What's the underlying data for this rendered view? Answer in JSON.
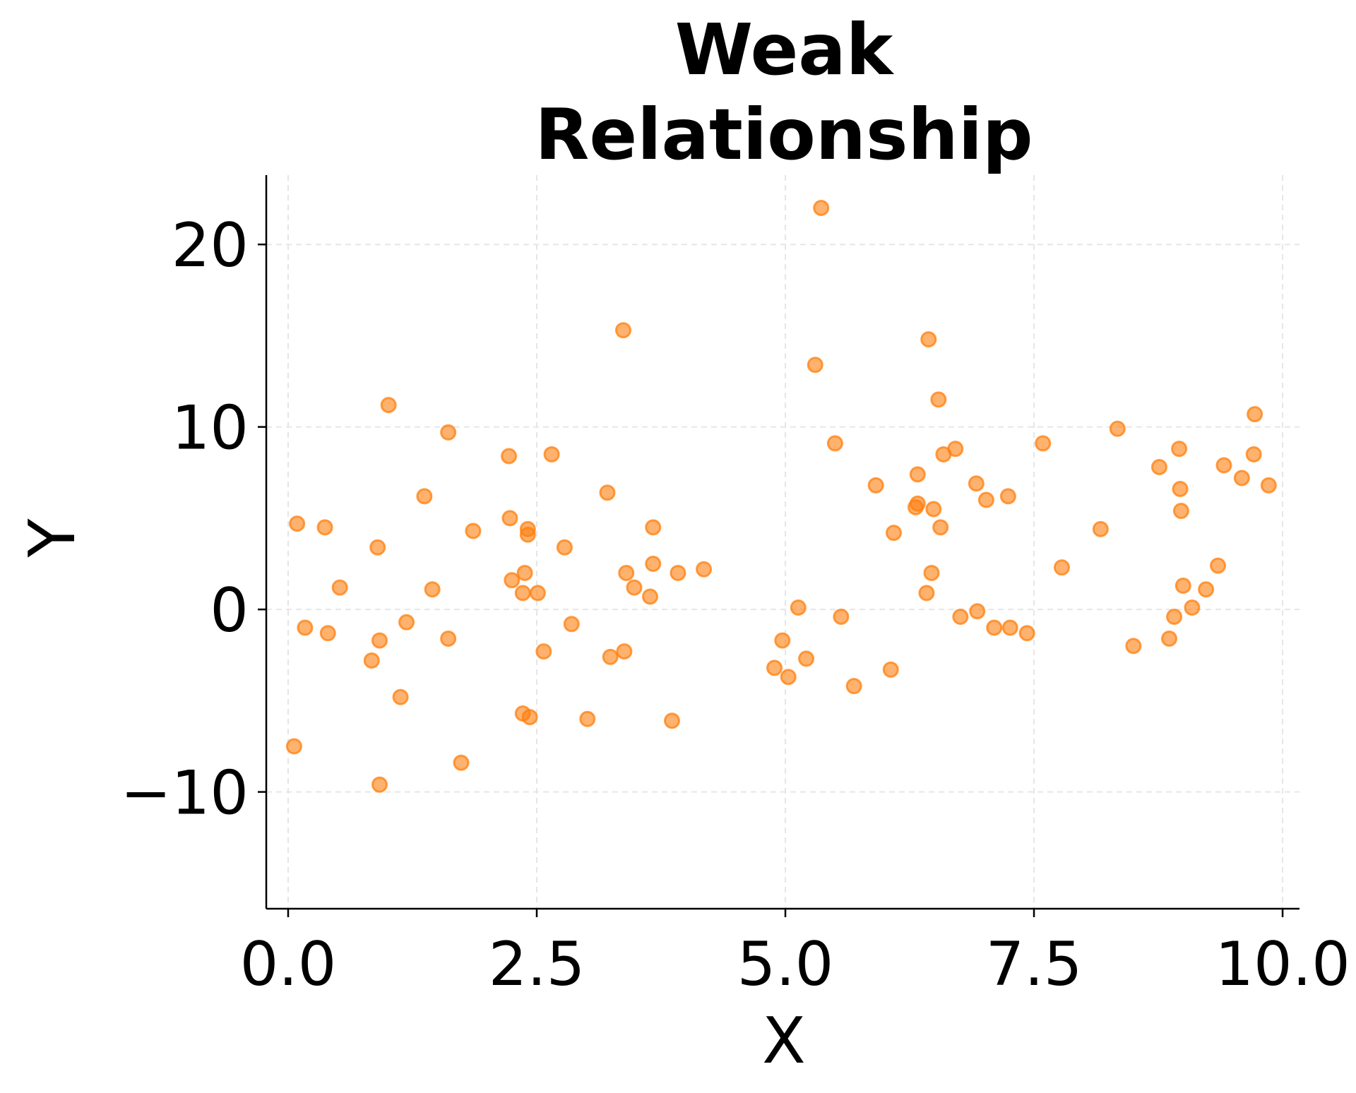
{
  "chart_data": {
    "type": "scatter",
    "title_lines": [
      "Weak",
      "Relationship"
    ],
    "xlabel": "X",
    "ylabel": "Y",
    "xlim": [
      -0.22,
      10.17
    ],
    "ylim": [
      -16.4,
      23.8
    ],
    "x_ticks": [
      0.0,
      2.5,
      5.0,
      7.5,
      10.0
    ],
    "x_tick_labels": [
      "0.0",
      "2.5",
      "5.0",
      "7.5",
      "10.0"
    ],
    "y_ticks": [
      -10,
      0,
      10,
      20
    ],
    "y_tick_labels": [
      "−10",
      "0",
      "10",
      "20"
    ],
    "grid": true,
    "colors": {
      "points": "#ff7f0e",
      "grid": "#e6e6e6",
      "axis": "#000000"
    },
    "series": [
      {
        "points": [
          [
            0.06,
            -7.5
          ],
          [
            0.09,
            4.7
          ],
          [
            0.17,
            -1.0
          ],
          [
            0.37,
            4.5
          ],
          [
            0.4,
            -1.3
          ],
          [
            0.52,
            1.2
          ],
          [
            0.9,
            3.4
          ],
          [
            0.92,
            -1.7
          ],
          [
            0.84,
            -2.8
          ],
          [
            0.92,
            -9.6
          ],
          [
            1.01,
            11.2
          ],
          [
            1.13,
            -4.8
          ],
          [
            1.19,
            -0.7
          ],
          [
            1.37,
            6.2
          ],
          [
            1.45,
            1.1
          ],
          [
            1.61,
            9.7
          ],
          [
            1.61,
            -1.6
          ],
          [
            1.74,
            -8.4
          ],
          [
            1.86,
            4.3
          ],
          [
            2.22,
            8.4
          ],
          [
            2.23,
            5.0
          ],
          [
            2.25,
            1.6
          ],
          [
            2.36,
            0.9
          ],
          [
            2.38,
            2.0
          ],
          [
            2.36,
            -5.7
          ],
          [
            2.41,
            4.4
          ],
          [
            2.41,
            4.1
          ],
          [
            2.43,
            -5.9
          ],
          [
            2.51,
            0.9
          ],
          [
            2.57,
            -2.3
          ],
          [
            2.65,
            8.5
          ],
          [
            2.78,
            3.4
          ],
          [
            2.85,
            -0.8
          ],
          [
            3.01,
            -6.0
          ],
          [
            3.21,
            6.4
          ],
          [
            3.24,
            -2.6
          ],
          [
            3.37,
            15.3
          ],
          [
            3.38,
            -2.3
          ],
          [
            3.4,
            2.0
          ],
          [
            3.48,
            1.2
          ],
          [
            3.64,
            0.7
          ],
          [
            3.67,
            4.5
          ],
          [
            3.67,
            2.5
          ],
          [
            3.86,
            -6.1
          ],
          [
            3.92,
            2.0
          ],
          [
            4.18,
            2.2
          ],
          [
            4.89,
            -3.2
          ],
          [
            4.97,
            -1.7
          ],
          [
            5.03,
            -3.7
          ],
          [
            5.13,
            0.1
          ],
          [
            5.21,
            -2.7
          ],
          [
            5.3,
            13.4
          ],
          [
            5.36,
            22.0
          ],
          [
            5.5,
            9.1
          ],
          [
            5.56,
            -0.4
          ],
          [
            5.69,
            -4.2
          ],
          [
            5.91,
            6.8
          ],
          [
            6.06,
            -3.3
          ],
          [
            6.09,
            4.2
          ],
          [
            6.31,
            5.6
          ],
          [
            6.33,
            5.8
          ],
          [
            6.33,
            7.4
          ],
          [
            6.42,
            0.9
          ],
          [
            6.44,
            14.8
          ],
          [
            6.47,
            2.0
          ],
          [
            6.49,
            5.5
          ],
          [
            6.54,
            11.5
          ],
          [
            6.56,
            4.5
          ],
          [
            6.59,
            8.5
          ],
          [
            6.71,
            8.8
          ],
          [
            6.76,
            -0.4
          ],
          [
            6.92,
            6.9
          ],
          [
            6.93,
            -0.1
          ],
          [
            7.02,
            6.0
          ],
          [
            7.1,
            -1.0
          ],
          [
            7.24,
            6.2
          ],
          [
            7.26,
            -1.0
          ],
          [
            7.43,
            -1.3
          ],
          [
            7.59,
            9.1
          ],
          [
            7.78,
            2.3
          ],
          [
            8.17,
            4.4
          ],
          [
            8.34,
            9.9
          ],
          [
            8.5,
            -2.0
          ],
          [
            8.76,
            7.8
          ],
          [
            8.86,
            -1.6
          ],
          [
            8.91,
            -0.4
          ],
          [
            8.96,
            8.8
          ],
          [
            8.97,
            6.6
          ],
          [
            8.98,
            5.4
          ],
          [
            9.0,
            1.3
          ],
          [
            9.09,
            0.1
          ],
          [
            9.23,
            1.1
          ],
          [
            9.35,
            2.4
          ],
          [
            9.41,
            7.9
          ],
          [
            9.59,
            7.2
          ],
          [
            9.71,
            8.5
          ],
          [
            9.72,
            10.7
          ],
          [
            9.86,
            6.8
          ]
        ]
      }
    ]
  }
}
